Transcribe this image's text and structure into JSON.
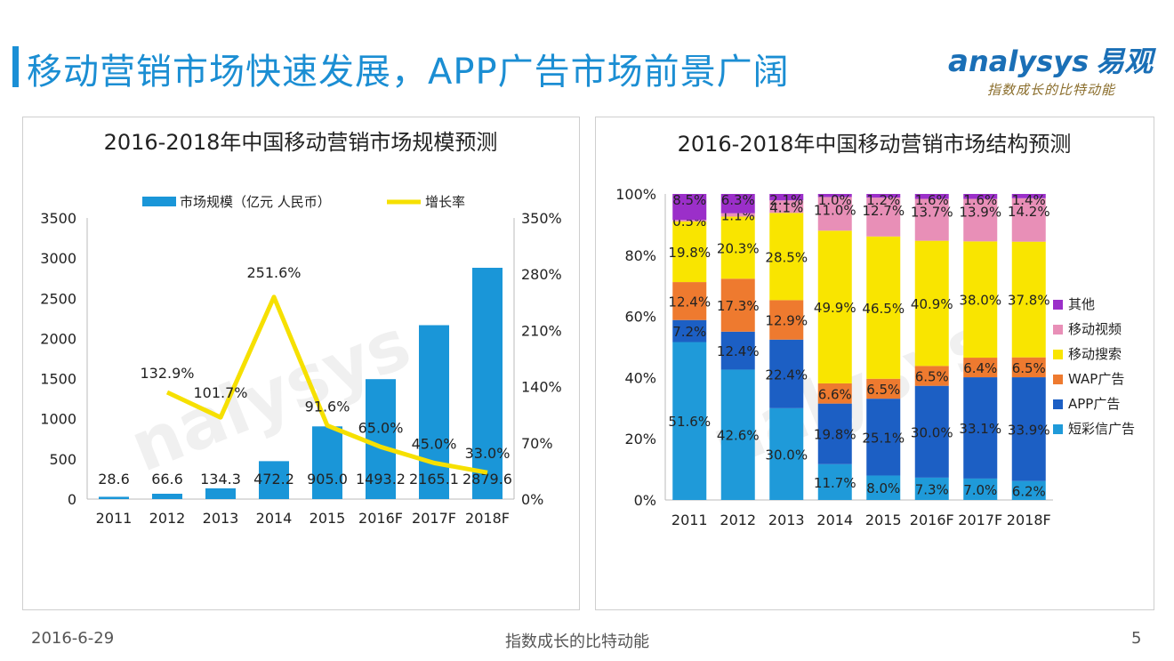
{
  "header": {
    "title": "移动营销市场快速发展，APP广告市场前景广阔",
    "logo_text": "nalysys",
    "logo_cn": "易观",
    "logo_slogan": "指数成长的比特动能"
  },
  "footer": {
    "date": "2016-6-29",
    "slogan": "指数成长的比特动能",
    "page": "5"
  },
  "colors": {
    "title_blue": "#1b8ed3",
    "bar_blue": "#1a96d8",
    "line_yellow": "#f6e000",
    "sms_blue": "#1f9ad9",
    "app_blue": "#1c5fc4",
    "wap_orange": "#ee7a2f",
    "search_yellow": "#f9e500",
    "video_pink": "#e88fb7",
    "other_purple": "#9b2fc9"
  },
  "chart_data": [
    {
      "type": "bar",
      "title": "2016-2018年中国移动营销市场规模预测",
      "categories": [
        "2011",
        "2012",
        "2013",
        "2014",
        "2015",
        "2016F",
        "2017F",
        "2018F"
      ],
      "series": [
        {
          "name": "市场规模（亿元 人民币）",
          "type": "bar",
          "axis": "left",
          "values": [
            28.6,
            66.6,
            134.3,
            472.2,
            905.0,
            1493.2,
            2165.1,
            2879.6
          ],
          "labels": [
            "28.6",
            "66.6",
            "134.3",
            "472.2",
            "905.0",
            "1493.2",
            "2165.1",
            "2879.6"
          ]
        },
        {
          "name": "增长率",
          "type": "line",
          "axis": "right",
          "values": [
            null,
            132.9,
            101.7,
            251.6,
            91.6,
            65.0,
            45.0,
            33.0
          ],
          "labels": [
            "",
            "132.9%",
            "101.7%",
            "251.6%",
            "91.6%",
            "65.0%",
            "45.0%",
            "33.0%"
          ]
        }
      ],
      "ylim_left": [
        0,
        3500
      ],
      "yticks_left": [
        "0",
        "500",
        "1000",
        "1500",
        "2000",
        "2500",
        "3000",
        "3500"
      ],
      "ylim_right": [
        0,
        350
      ],
      "yticks_right": [
        "0%",
        "70%",
        "140%",
        "210%",
        "280%",
        "350%"
      ],
      "legend_position": "top",
      "grid": false
    },
    {
      "type": "bar",
      "stacked": true,
      "percent": true,
      "title": "2016-2018年中国移动营销市场结构预测",
      "categories": [
        "2011",
        "2012",
        "2013",
        "2014",
        "2015",
        "2016F",
        "2017F",
        "2018F"
      ],
      "series": [
        {
          "name": "短彩信广告",
          "values": [
            51.6,
            42.6,
            30.0,
            11.7,
            8.0,
            7.3,
            7.0,
            6.2
          ]
        },
        {
          "name": "APP广告",
          "values": [
            7.2,
            12.4,
            22.4,
            19.8,
            25.1,
            30.0,
            33.1,
            33.9
          ]
        },
        {
          "name": "WAP广告",
          "values": [
            12.4,
            17.3,
            12.9,
            6.6,
            6.5,
            6.5,
            6.4,
            6.5
          ]
        },
        {
          "name": "移动搜索",
          "values": [
            19.8,
            20.3,
            28.5,
            49.9,
            46.5,
            40.9,
            38.0,
            37.8
          ]
        },
        {
          "name": "移动视频",
          "values": [
            0.5,
            1.1,
            4.1,
            11.0,
            12.7,
            13.7,
            13.9,
            14.2
          ]
        },
        {
          "name": "其他",
          "values": [
            8.5,
            6.3,
            2.1,
            1.0,
            1.2,
            1.6,
            1.6,
            1.4
          ]
        }
      ],
      "ylim": [
        0,
        100
      ],
      "yticks": [
        "0%",
        "20%",
        "40%",
        "60%",
        "80%",
        "100%"
      ],
      "legend_position": "right",
      "grid": false
    }
  ],
  "watermark": "nalysys"
}
